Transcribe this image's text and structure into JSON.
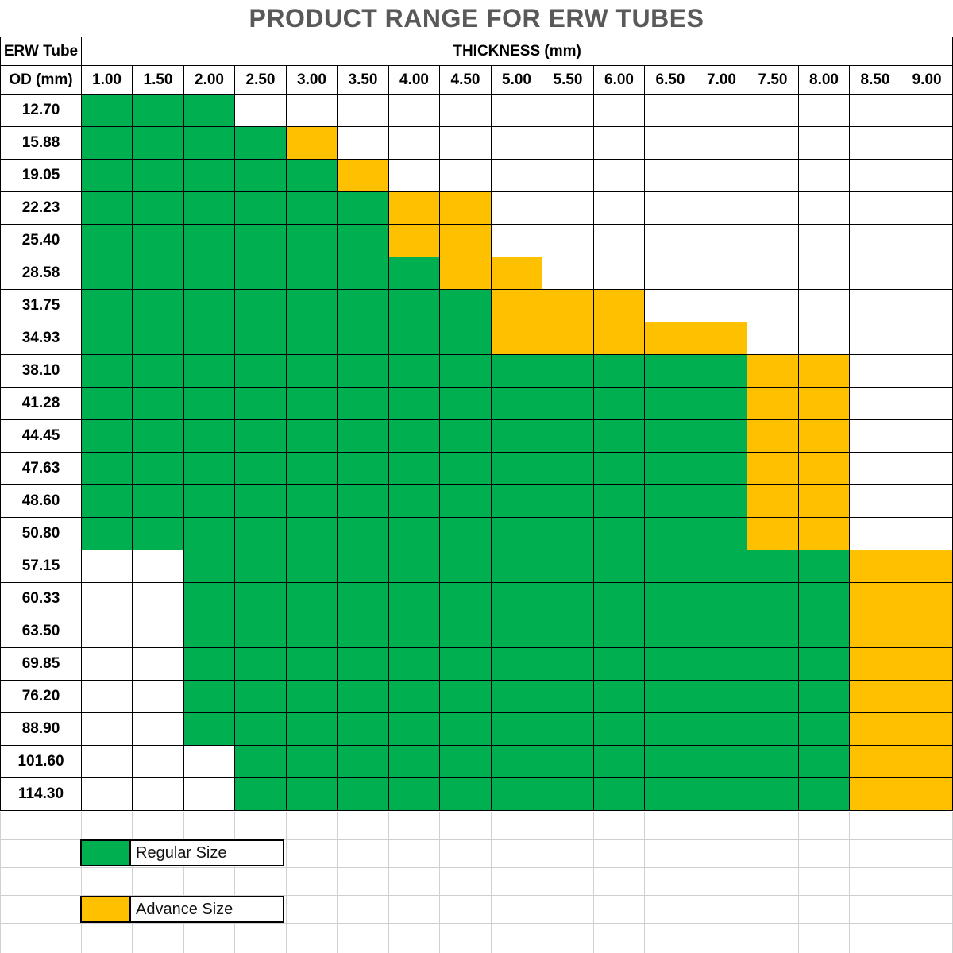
{
  "title": "PRODUCT RANGE FOR ERW TUBES",
  "header": {
    "row_label_top": "ERW Tube",
    "row_label_bottom": "OD (mm)",
    "thickness_label": "THICKNESS (mm)"
  },
  "thicknesses": [
    "1.00",
    "1.50",
    "2.00",
    "2.50",
    "3.00",
    "3.50",
    "4.00",
    "4.50",
    "5.00",
    "5.50",
    "6.00",
    "6.50",
    "7.00",
    "7.50",
    "8.00",
    "8.50",
    "9.00"
  ],
  "rows": [
    {
      "od": "12.70",
      "cells": "GGG"
    },
    {
      "od": "15.88",
      "cells": "GGGGY"
    },
    {
      "od": "19.05",
      "cells": "GGGGGY"
    },
    {
      "od": "22.23",
      "cells": "GGGGGGYY"
    },
    {
      "od": "25.40",
      "cells": "GGGGGGYY"
    },
    {
      "od": "28.58",
      "cells": "GGGGGGGYY"
    },
    {
      "od": "31.75",
      "cells": "GGGGGGGGYYY"
    },
    {
      "od": "34.93",
      "cells": "GGGGGGGGYYYYY"
    },
    {
      "od": "38.10",
      "cells": "GGGGGGGGGGGGGYY"
    },
    {
      "od": "41.28",
      "cells": "GGGGGGGGGGGGGYY"
    },
    {
      "od": "44.45",
      "cells": "GGGGGGGGGGGGGYY"
    },
    {
      "od": "47.63",
      "cells": "GGGGGGGGGGGGGYY"
    },
    {
      "od": "48.60",
      "cells": "GGGGGGGGGGGGGYY"
    },
    {
      "od": "50.80",
      "cells": "GGGGGGGGGGGGGYY"
    },
    {
      "od": "57.15",
      "cells": "WWGGGGGGGGGGGGGYY"
    },
    {
      "od": "60.33",
      "cells": "WWGGGGGGGGGGGGGYY"
    },
    {
      "od": "63.50",
      "cells": "WWGGGGGGGGGGGGGYY"
    },
    {
      "od": "69.85",
      "cells": "WWGGGGGGGGGGGGGYY"
    },
    {
      "od": "76.20",
      "cells": "WWGGGGGGGGGGGGGYY"
    },
    {
      "od": "88.90",
      "cells": "WWGGGGGGGGGGGGGYY"
    },
    {
      "od": "101.60",
      "cells": "WWWGGGGGGGGGGGGYY"
    },
    {
      "od": "114.30",
      "cells": "WWWGGGGGGGGGGGGYY"
    }
  ],
  "legend": [
    {
      "key": "G",
      "label": "Regular Size",
      "color": "#00b050"
    },
    {
      "key": "Y",
      "label": "Advance  Size",
      "color": "#ffc000"
    }
  ],
  "colors": {
    "regular": "#00b050",
    "advance": "#ffc000",
    "title": "#595959"
  }
}
